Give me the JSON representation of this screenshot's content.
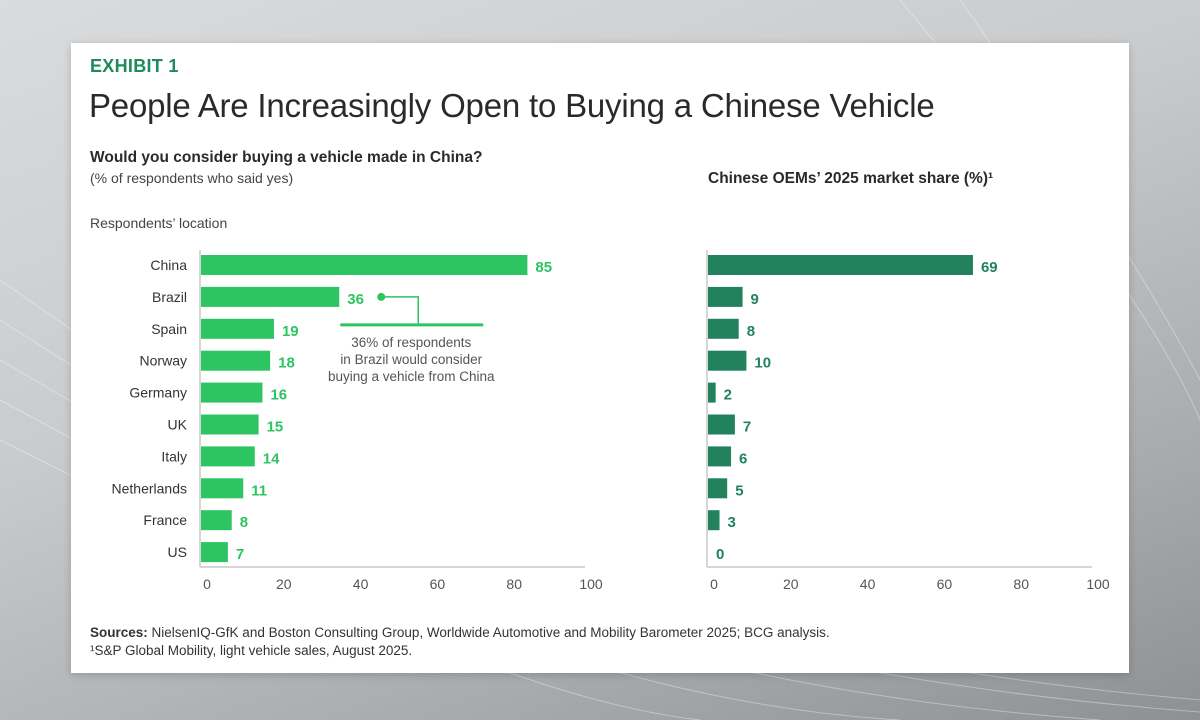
{
  "exhibit_label": "EXHIBIT 1",
  "title": "People Are Increasingly Open to Buying a Chinese Vehicle",
  "colors": {
    "accent": "#1f8a5c",
    "left_bars": "#2dc462",
    "right_bars": "#23825e",
    "axis": "#c8c8c8",
    "tick_text": "#555555"
  },
  "chart_data": [
    {
      "type": "bar",
      "orientation": "horizontal",
      "title": "Would you consider buying a vehicle made in China?",
      "subtitle": "(% of respondents who said yes)",
      "ylabel": "Respondents’ location",
      "xlabel": "",
      "categories": [
        "China",
        "Brazil",
        "Spain",
        "Norway",
        "Germany",
        "UK",
        "Italy",
        "Netherlands",
        "France",
        "US"
      ],
      "values": [
        85,
        36,
        19,
        18,
        16,
        15,
        14,
        11,
        8,
        7
      ],
      "value_labels": [
        "85",
        "36",
        "19",
        "18",
        "16",
        "15",
        "14",
        "11",
        "8",
        "7"
      ],
      "xlim": [
        0,
        100
      ],
      "xticks": [
        0,
        20,
        40,
        60,
        80,
        100
      ],
      "xtick_labels": [
        "0",
        "20",
        "40",
        "60",
        "80",
        "100"
      ],
      "grid": false,
      "annotation": {
        "target": "Brazil",
        "lines": [
          "36% of respondents",
          "in Brazil would consider",
          "buying a vehicle from China"
        ]
      }
    },
    {
      "type": "bar",
      "orientation": "horizontal",
      "title": "Chinese OEMs’ 2025 market share (%)¹",
      "categories": [
        "China",
        "Brazil",
        "Spain",
        "Norway",
        "Germany",
        "UK",
        "Italy",
        "Netherlands",
        "France",
        "US"
      ],
      "values": [
        69,
        9,
        8,
        10,
        2,
        7,
        6,
        5,
        3,
        0
      ],
      "value_labels": [
        "69",
        "9",
        "8",
        "10",
        "2",
        "7",
        "6",
        "5",
        "3",
        "0"
      ],
      "xlim": [
        0,
        100
      ],
      "xticks": [
        0,
        20,
        40,
        60,
        80,
        100
      ],
      "xtick_labels": [
        "0",
        "20",
        "40",
        "60",
        "80",
        "100"
      ],
      "grid": false
    }
  ],
  "footer": {
    "sources_label": "Sources:",
    "sources_text": " NielsenIQ-GfK and Boston Consulting Group, Worldwide Automotive and Mobility Barometer 2025; BCG analysis.",
    "footnote": "¹S&P Global Mobility, light vehicle sales, August 2025."
  }
}
